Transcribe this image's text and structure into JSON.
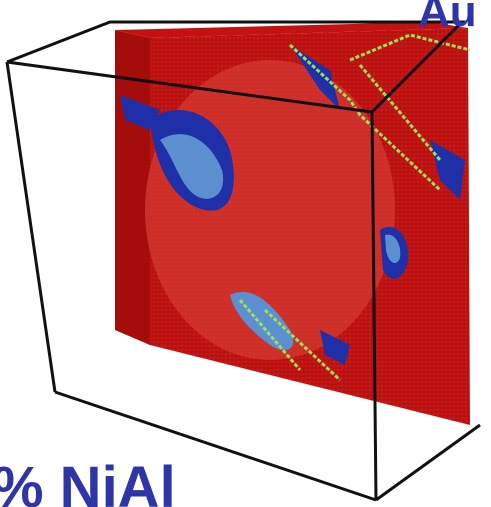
{
  "labels": {
    "top_right": "Au",
    "bottom_left": "% NiAl"
  }
}
